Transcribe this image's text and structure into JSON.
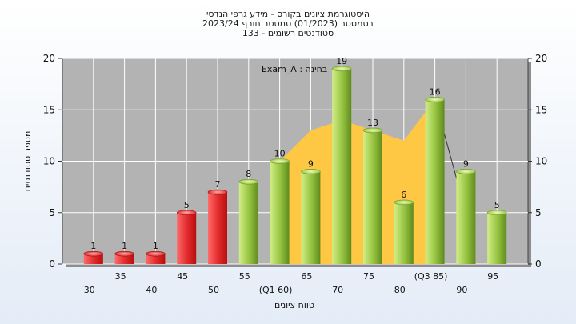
{
  "chart_data": {
    "type": "bar",
    "title_lines": [
      "היסטוגרמת ציונים בקורס - מידע גרפי הנדסי",
      "בסמסטר  (01/2023)  סמסטר חורף 2023/24",
      "סטודנטים רשומים - 133"
    ],
    "annotation": "בחינה : Exam_A",
    "xlabel": "טווח ציונים",
    "ylabel": "מספר סטודנטים",
    "ylim": [
      0,
      20
    ],
    "yticks": [
      0,
      5,
      10,
      15,
      20
    ],
    "categories": [
      "30",
      "35",
      "40",
      "45",
      "50",
      "55",
      "(Q1 60)",
      "65",
      "70",
      "75",
      "80",
      "(Q3 85)",
      "90",
      "95"
    ],
    "values": [
      1,
      1,
      1,
      5,
      7,
      8,
      10,
      9,
      19,
      13,
      6,
      16,
      9,
      5
    ],
    "bar_colors": [
      "red",
      "red",
      "red",
      "red",
      "red",
      "green",
      "green",
      "green",
      "green",
      "green",
      "green",
      "green",
      "green",
      "green"
    ],
    "area_range": [
      6,
      11
    ],
    "area_values": [
      10,
      13,
      14,
      13,
      12,
      16
    ],
    "colors": {
      "plot_bg": "#b3b3b3",
      "area": "#ffc844",
      "red_light": "#ff6a6a",
      "red_dark": "#b80f0f",
      "green_light": "#d2ee86",
      "green_dark": "#5f8a1c"
    },
    "grid": true,
    "legend": "none"
  }
}
